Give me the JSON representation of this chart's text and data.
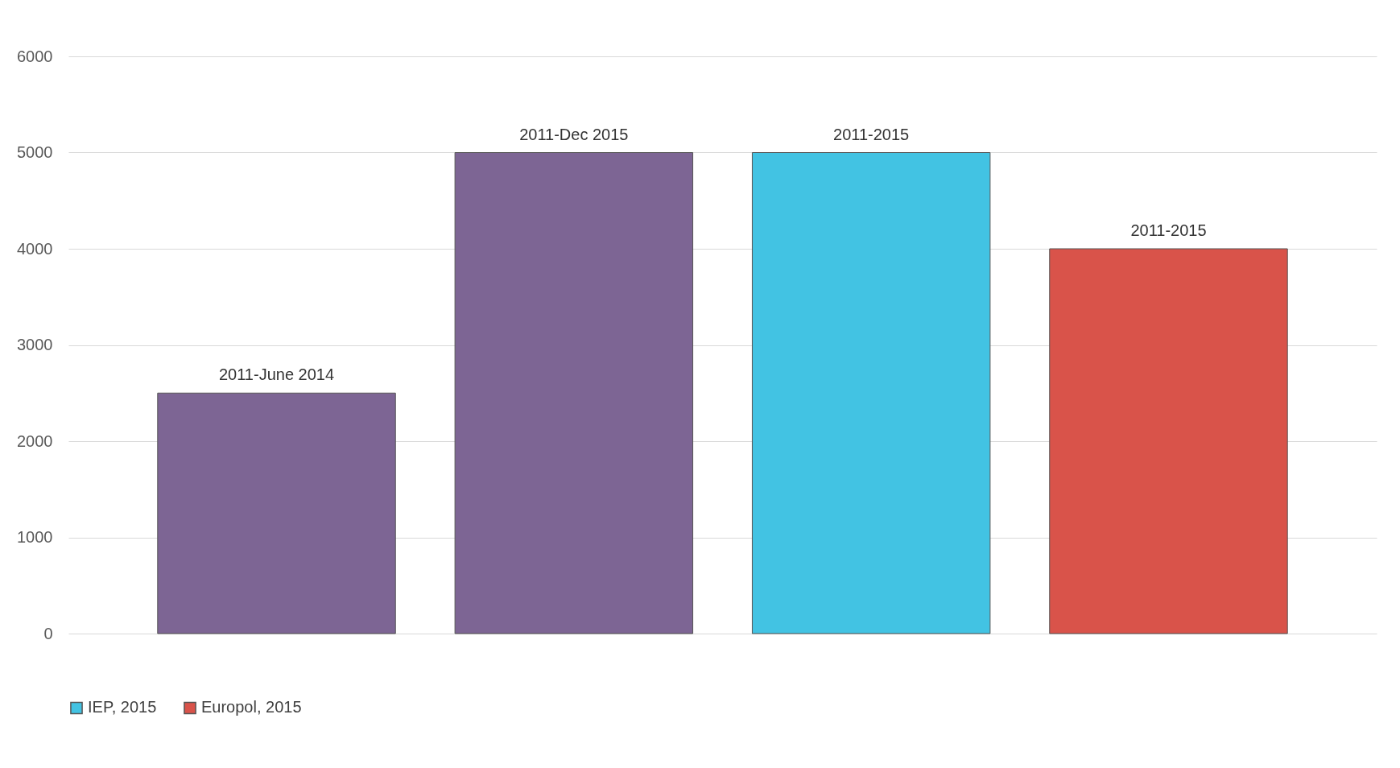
{
  "chart_data": {
    "type": "bar",
    "categories": [
      null,
      null,
      null,
      null
    ],
    "series": [
      {
        "color": "#7d6594",
        "values": [
          2500,
          5000,
          null,
          null
        ],
        "value_labels": [
          "2011-June 2014",
          "2011-Dec 2015",
          null,
          null
        ]
      },
      {
        "name": "IEP, 2015",
        "color": "#42c3e3",
        "values": [
          null,
          null,
          5000,
          null
        ],
        "value_labels": [
          null,
          null,
          "2011-2015",
          null
        ]
      },
      {
        "name": "Europol, 2015",
        "color": "#d9534a",
        "values": [
          null,
          null,
          null,
          4000
        ],
        "value_labels": [
          null,
          null,
          null,
          "2011-2015"
        ]
      }
    ],
    "ylim": [
      0,
      6000
    ],
    "yticks": [
      0,
      1000,
      2000,
      3000,
      4000,
      5000,
      6000
    ],
    "grid": "y",
    "legend": "bottom"
  }
}
